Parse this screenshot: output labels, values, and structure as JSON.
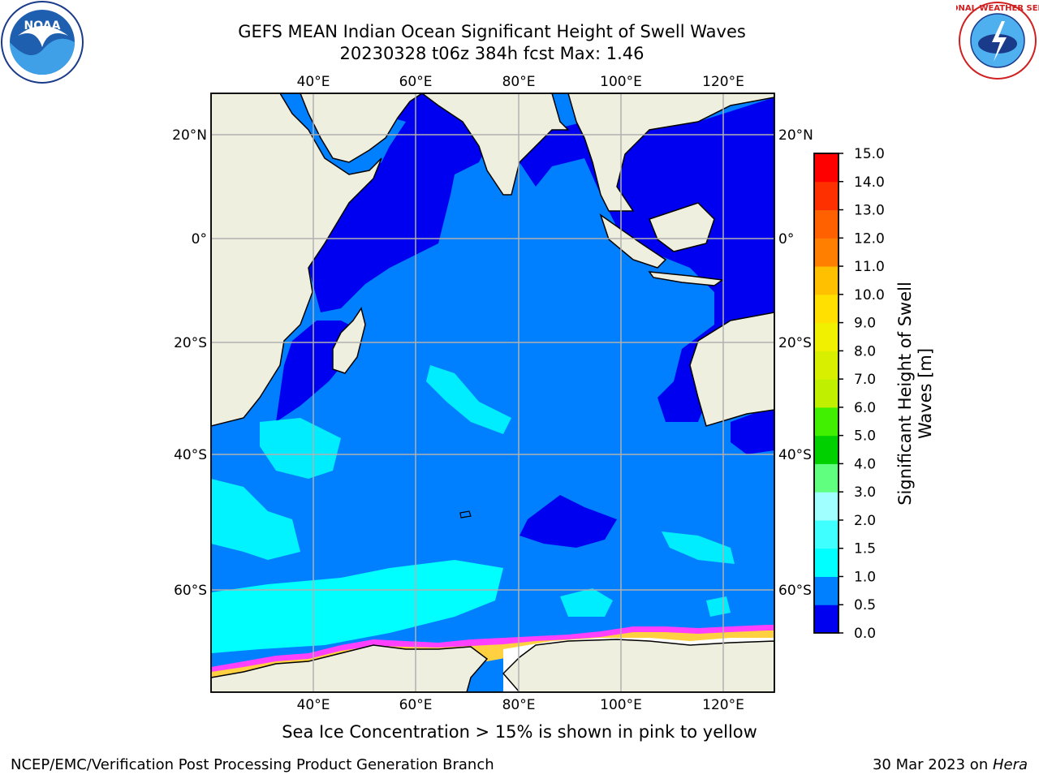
{
  "title_line1": "GEFS MEAN Indian Ocean Significant Height of Swell Waves",
  "title_line2": "20230328 t06z 384h fcst   Max: 1.46",
  "subtitle": "Sea Ice Concentration > 15% is shown in pink to yellow",
  "footer_left": "NCEP/EMC/Verification Post Processing Product Generation Branch",
  "footer_date": "30 Mar 2023 on ",
  "footer_machine": "Hera",
  "logos": {
    "left": "noaa-logo",
    "right": "national-weather-service-logo",
    "nws_text": "NATIONAL WEATHER SERVICE",
    "noaa_text": "NOAA"
  },
  "map": {
    "lon_labels": [
      "40°E",
      "60°E",
      "80°E",
      "100°E",
      "120°E"
    ],
    "lat_labels_left": [
      "20°N",
      "0°",
      "20°S",
      "40°S",
      "60°S"
    ],
    "lat_labels_right": [
      "20°N",
      "0°",
      "20°S",
      "40°S",
      "60°S"
    ],
    "colors": {
      "land": "#efefdf",
      "ocean_low": "#0000f0",
      "ocean_mid": "#0080ff",
      "ocean_high": "#00ffff",
      "ice_pink": "#ff40ff",
      "ice_yellow": "#ffd040",
      "grid": "#b0b0b0"
    }
  },
  "colorbar": {
    "title_line1": "Significant Height of Swell",
    "title_line2": "Waves [m]",
    "ticks": [
      "0.0",
      "0.5",
      "1.0",
      "1.5",
      "2.0",
      "3.0",
      "4.0",
      "5.0",
      "6.0",
      "7.0",
      "8.0",
      "9.0",
      "10.0",
      "11.0",
      "12.0",
      "13.0",
      "14.0",
      "15.0"
    ],
    "colors": [
      "#0000f0",
      "#0080ff",
      "#00ffff",
      "#40ffff",
      "#a0ffff",
      "#60ff80",
      "#00d000",
      "#40f000",
      "#c0f000",
      "#d8f000",
      "#f0f000",
      "#ffe000",
      "#ffc000",
      "#ff8000",
      "#ff6000",
      "#ff3000",
      "#ff0000"
    ]
  }
}
